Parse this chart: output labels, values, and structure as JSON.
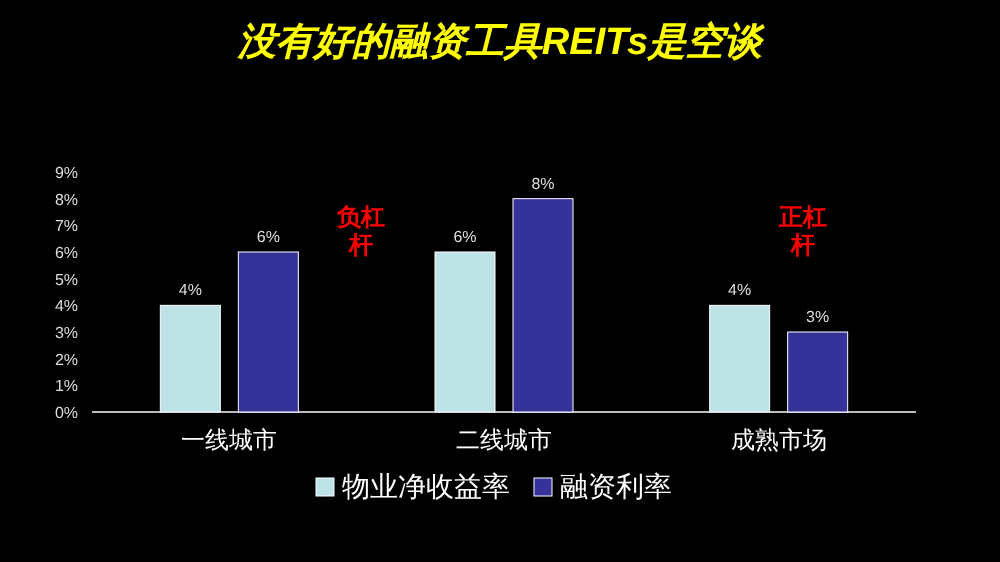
{
  "chart_data": {
    "type": "bar",
    "title": "没有好的融资工具REITs是空谈",
    "categories": [
      "一线城市",
      "二线城市",
      "成熟市场"
    ],
    "series": [
      {
        "name": "物业净收益率",
        "color": "#bde3e6",
        "values": [
          4,
          6,
          4
        ],
        "value_labels": [
          "4%",
          "6%",
          "4%"
        ]
      },
      {
        "name": "融资利率",
        "color": "#35339a",
        "values": [
          6,
          8,
          3
        ],
        "value_labels": [
          "6%",
          "8%",
          "3%"
        ]
      }
    ],
    "ylim": [
      0,
      9
    ],
    "yticks": [
      {
        "value": 0,
        "label": "0%"
      },
      {
        "value": 1,
        "label": "1%"
      },
      {
        "value": 2,
        "label": "2%"
      },
      {
        "value": 3,
        "label": "3%"
      },
      {
        "value": 4,
        "label": "4%"
      },
      {
        "value": 5,
        "label": "5%"
      },
      {
        "value": 6,
        "label": "6%"
      },
      {
        "value": 7,
        "label": "7%"
      },
      {
        "value": 8,
        "label": "8%"
      },
      {
        "value": 9,
        "label": "9%"
      }
    ],
    "annotations": [
      "负杠杆",
      "正杠杆"
    ],
    "legend": "bottom",
    "grid": false
  }
}
